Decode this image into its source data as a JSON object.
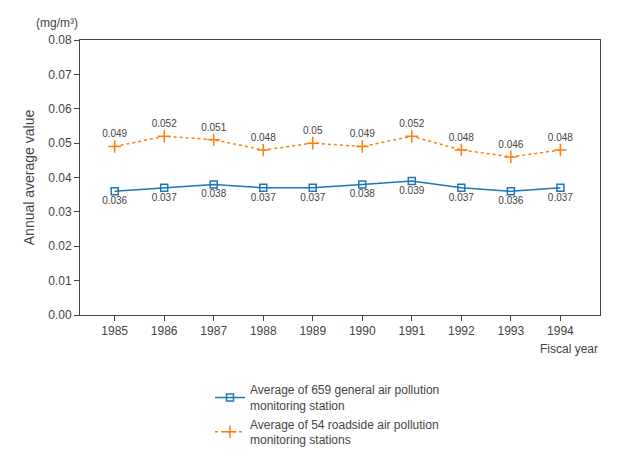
{
  "chart_data": {
    "type": "line",
    "x_label": "Fiscal year",
    "y_label": "Annual average value",
    "annotations": [
      "(mg/m³)"
    ],
    "x": [
      1985,
      1986,
      1987,
      1988,
      1989,
      1990,
      1991,
      1992,
      1993,
      1994
    ],
    "series": [
      {
        "name": "Average of 659 general air pollution\nmonitoring station",
        "values": [
          0.036,
          0.037,
          0.038,
          0.037,
          0.037,
          0.038,
          0.039,
          0.037,
          0.036,
          0.037
        ],
        "marker": "square",
        "line_style": "solid"
      },
      {
        "name": "Average of 54 roadside air pollution\nmonitoring stations",
        "values": [
          0.049,
          0.052,
          0.051,
          0.048,
          0.05,
          0.049,
          0.052,
          0.048,
          0.046,
          0.048
        ],
        "marker": "cross",
        "line_style": "dotted"
      }
    ],
    "xlim": [
      1984.3,
      1994.8
    ],
    "xticks": [
      1985,
      1986,
      1987,
      1988,
      1989,
      1990,
      1991,
      1992,
      1993,
      1994
    ],
    "ylim": [
      0.0,
      0.08
    ],
    "yticks": [
      {
        "value": 0.0,
        "label": "0.00"
      },
      0.01,
      0.02,
      0.03,
      0.04,
      0.05,
      0.06,
      0.07,
      0.08
    ],
    "data_labels": true,
    "grid": false,
    "legend": "bottom"
  }
}
